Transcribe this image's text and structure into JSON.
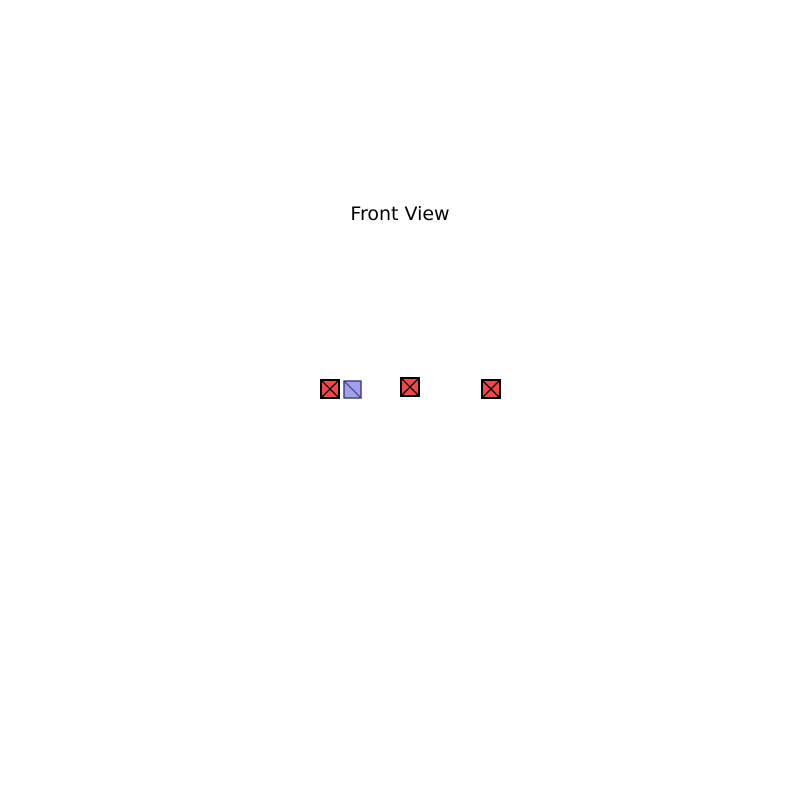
{
  "title": "Front View",
  "colors": {
    "background": "#ffffff",
    "crossed_fill": "#f04848",
    "crossed_stroke": "#000000",
    "diagonal_fill": "#a0a0ec",
    "diagonal_stroke": "#3a3a7a"
  },
  "markers": [
    {
      "id": "marker-1",
      "style": "crossed"
    },
    {
      "id": "marker-2",
      "style": "diagonal"
    },
    {
      "id": "marker-3",
      "style": "crossed"
    },
    {
      "id": "marker-4",
      "style": "crossed"
    }
  ]
}
